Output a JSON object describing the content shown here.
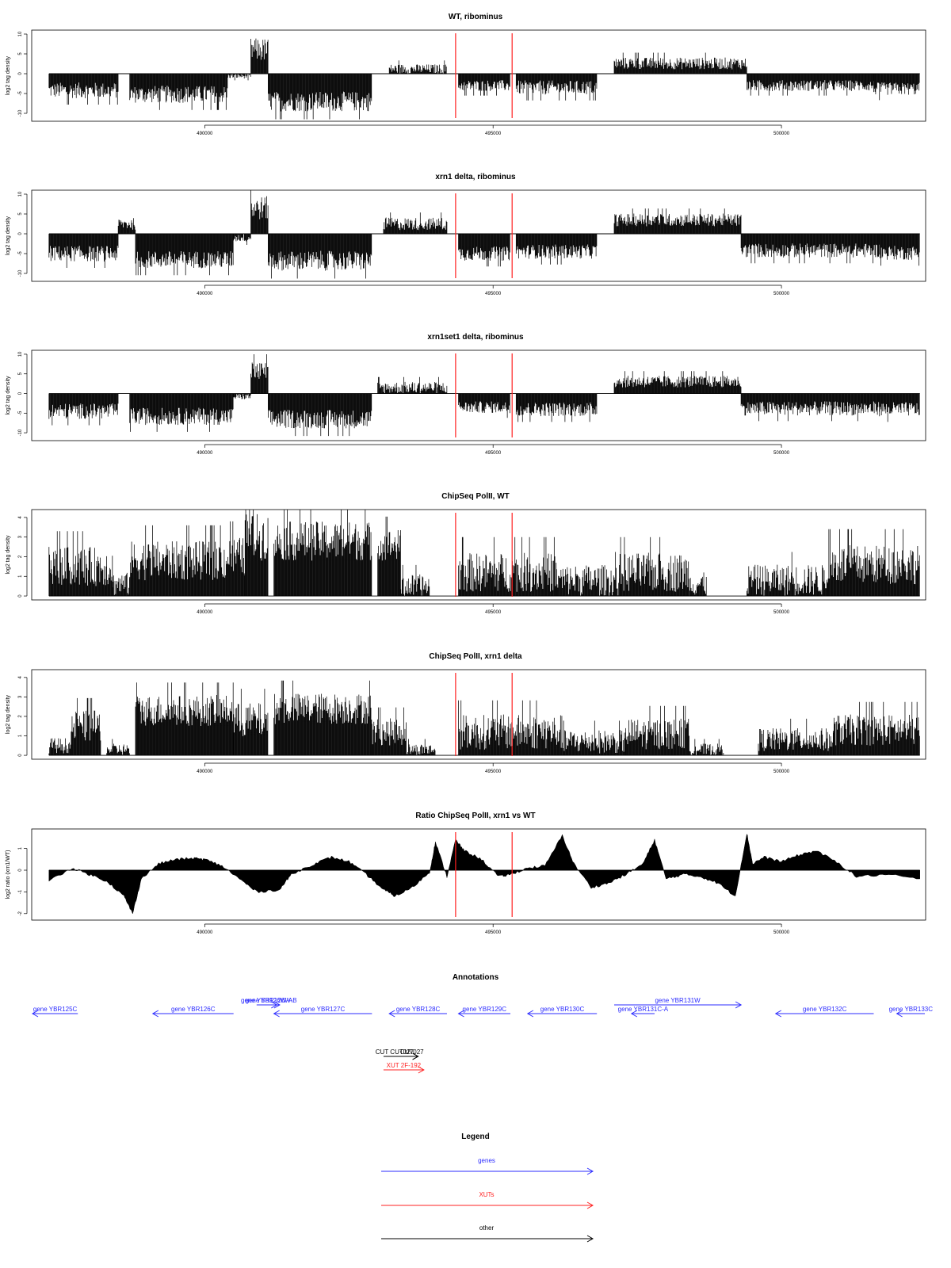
{
  "colors": {
    "genes": "#2b2bff",
    "xuts": "#ff2020",
    "other": "#000000",
    "marker": "#ff2020",
    "data": "#000000"
  },
  "x_range": [
    487000,
    502500
  ],
  "markers": [
    494350,
    495330
  ],
  "chart_data": [
    {
      "id": "wt_ribominus",
      "type": "bar",
      "title": "WT, ribominus",
      "ylabel": "log2 tag density",
      "ylim": [
        -12,
        11
      ],
      "y_ticks": [
        -10,
        -5,
        0,
        5,
        10
      ],
      "x_ticks": [
        490000,
        495000,
        500000
      ],
      "baseline": 0,
      "segments": [
        {
          "start": 487300,
          "end": 488500,
          "level": -4.2,
          "var": 2.0
        },
        {
          "start": 488700,
          "end": 490400,
          "level": -5.2,
          "var": 2.2
        },
        {
          "start": 490400,
          "end": 490800,
          "level": -0.6,
          "var": 0.6
        },
        {
          "start": 490800,
          "end": 491100,
          "level": 6.0,
          "var": 3.0
        },
        {
          "start": 491100,
          "end": 492900,
          "level": -7.0,
          "var": 2.5
        },
        {
          "start": 493200,
          "end": 494200,
          "level": 1.2,
          "var": 1.2
        },
        {
          "start": 494400,
          "end": 495300,
          "level": -3.0,
          "var": 1.4
        },
        {
          "start": 495400,
          "end": 496800,
          "level": -3.5,
          "var": 1.8
        },
        {
          "start": 497100,
          "end": 499400,
          "level": 2.6,
          "var": 1.5
        },
        {
          "start": 499400,
          "end": 501600,
          "level": -3.0,
          "var": 1.4
        },
        {
          "start": 501600,
          "end": 502400,
          "level": -3.8,
          "var": 1.6
        }
      ]
    },
    {
      "id": "xrn1_ribominus",
      "type": "bar",
      "title": "xrn1 delta, ribominus",
      "ylabel": "log2 tag density",
      "ylim": [
        -12,
        11
      ],
      "y_ticks": [
        -10,
        -5,
        0,
        5,
        10
      ],
      "x_ticks": [
        490000,
        495000,
        500000
      ],
      "baseline": 0,
      "segments": [
        {
          "start": 487300,
          "end": 488500,
          "level": -5.0,
          "var": 2.0
        },
        {
          "start": 488500,
          "end": 488800,
          "level": 2.5,
          "var": 1.5
        },
        {
          "start": 488800,
          "end": 490500,
          "level": -6.5,
          "var": 2.2
        },
        {
          "start": 490500,
          "end": 490800,
          "level": -1.0,
          "var": 1.0
        },
        {
          "start": 490800,
          "end": 491100,
          "level": 6.5,
          "var": 3.0
        },
        {
          "start": 491100,
          "end": 492900,
          "level": -6.8,
          "var": 2.5
        },
        {
          "start": 493100,
          "end": 494200,
          "level": 2.5,
          "var": 1.6
        },
        {
          "start": 494400,
          "end": 495300,
          "level": -5.0,
          "var": 1.8
        },
        {
          "start": 495400,
          "end": 496800,
          "level": -4.5,
          "var": 1.8
        },
        {
          "start": 497100,
          "end": 499300,
          "level": 3.5,
          "var": 1.6
        },
        {
          "start": 499300,
          "end": 501700,
          "level": -4.2,
          "var": 1.8
        },
        {
          "start": 501700,
          "end": 502400,
          "level": -4.8,
          "var": 1.8
        }
      ]
    },
    {
      "id": "xrn1set1_ribominus",
      "type": "bar",
      "title": "xrn1set1 delta, ribominus",
      "ylabel": "log2 tag density",
      "ylim": [
        -12,
        11
      ],
      "y_ticks": [
        -10,
        -5,
        0,
        5,
        10
      ],
      "x_ticks": [
        490000,
        495000,
        500000
      ],
      "baseline": 0,
      "segments": [
        {
          "start": 487300,
          "end": 488500,
          "level": -4.5,
          "var": 2.0
        },
        {
          "start": 488700,
          "end": 490500,
          "level": -5.8,
          "var": 2.2
        },
        {
          "start": 490500,
          "end": 490800,
          "level": -0.8,
          "var": 0.8
        },
        {
          "start": 490800,
          "end": 491100,
          "level": 5.5,
          "var": 2.5
        },
        {
          "start": 491100,
          "end": 492900,
          "level": -6.5,
          "var": 2.4
        },
        {
          "start": 493000,
          "end": 494200,
          "level": 1.5,
          "var": 1.5
        },
        {
          "start": 494400,
          "end": 495300,
          "level": -3.5,
          "var": 1.5
        },
        {
          "start": 495400,
          "end": 496800,
          "level": -4.0,
          "var": 1.8
        },
        {
          "start": 497100,
          "end": 499300,
          "level": 3.0,
          "var": 1.5
        },
        {
          "start": 499300,
          "end": 501700,
          "level": -3.8,
          "var": 1.8
        },
        {
          "start": 501700,
          "end": 502400,
          "level": -4.0,
          "var": 1.8
        }
      ]
    },
    {
      "id": "chipseq_wt",
      "type": "bar",
      "title": "ChipSeq PolII, WT",
      "ylabel": "log2 tag density",
      "ylim": [
        -0.2,
        4.4
      ],
      "y_ticks": [
        0,
        1,
        2,
        3,
        4
      ],
      "x_ticks": [
        490000,
        495000,
        500000
      ],
      "baseline": 0,
      "segments": [
        {
          "start": 487300,
          "end": 488400,
          "level": 1.5,
          "var": 1.0
        },
        {
          "start": 488400,
          "end": 488700,
          "level": 0.6,
          "var": 0.6
        },
        {
          "start": 488700,
          "end": 490400,
          "level": 1.8,
          "var": 1.0
        },
        {
          "start": 490400,
          "end": 490700,
          "level": 2.0,
          "var": 1.0
        },
        {
          "start": 490700,
          "end": 491100,
          "level": 3.0,
          "var": 1.2
        },
        {
          "start": 491200,
          "end": 492900,
          "level": 2.8,
          "var": 1.0
        },
        {
          "start": 493000,
          "end": 493400,
          "level": 2.6,
          "var": 0.8
        },
        {
          "start": 493400,
          "end": 493900,
          "level": 0.5,
          "var": 0.6
        },
        {
          "start": 494400,
          "end": 496100,
          "level": 1.2,
          "var": 1.0
        },
        {
          "start": 496100,
          "end": 497200,
          "level": 0.8,
          "var": 0.8
        },
        {
          "start": 497200,
          "end": 498400,
          "level": 1.2,
          "var": 1.0
        },
        {
          "start": 498400,
          "end": 498700,
          "level": 0.6,
          "var": 0.6
        },
        {
          "start": 499400,
          "end": 500800,
          "level": 0.8,
          "var": 0.8
        },
        {
          "start": 500800,
          "end": 502400,
          "level": 1.6,
          "var": 1.0
        }
      ]
    },
    {
      "id": "chipseq_xrn1",
      "type": "bar",
      "title": "ChipSeq PolII, xrn1 delta",
      "ylabel": "log2 tag density",
      "ylim": [
        -0.2,
        4.4
      ],
      "y_ticks": [
        0,
        1,
        2,
        3,
        4
      ],
      "x_ticks": [
        490000,
        495000,
        500000
      ],
      "baseline": 0,
      "segments": [
        {
          "start": 487300,
          "end": 487700,
          "level": 0.5,
          "var": 0.4
        },
        {
          "start": 487700,
          "end": 488200,
          "level": 1.5,
          "var": 0.8
        },
        {
          "start": 488300,
          "end": 488700,
          "level": 0.3,
          "var": 0.3
        },
        {
          "start": 488800,
          "end": 490500,
          "level": 2.3,
          "var": 0.8
        },
        {
          "start": 490500,
          "end": 491100,
          "level": 1.8,
          "var": 0.9
        },
        {
          "start": 491200,
          "end": 492900,
          "level": 2.4,
          "var": 0.8
        },
        {
          "start": 492900,
          "end": 493500,
          "level": 1.2,
          "var": 0.7
        },
        {
          "start": 493500,
          "end": 494000,
          "level": 0.3,
          "var": 0.3
        },
        {
          "start": 494400,
          "end": 496200,
          "level": 1.2,
          "var": 0.9
        },
        {
          "start": 496200,
          "end": 497300,
          "level": 0.7,
          "var": 0.6
        },
        {
          "start": 497300,
          "end": 498400,
          "level": 1.1,
          "var": 0.8
        },
        {
          "start": 498400,
          "end": 499000,
          "level": 0.3,
          "var": 0.3
        },
        {
          "start": 499600,
          "end": 500900,
          "level": 0.8,
          "var": 0.6
        },
        {
          "start": 500900,
          "end": 502400,
          "level": 1.3,
          "var": 0.8
        }
      ]
    },
    {
      "id": "ratio_xrn1_vs_wt",
      "type": "area",
      "title": "Ratio ChipSeq PolII, xrn1 vs WT",
      "ylabel": "log2 ratio (xrn1/WT)",
      "ylim": [
        -2.3,
        1.9
      ],
      "y_ticks": [
        -2,
        -1,
        0,
        1
      ],
      "x_ticks": [
        490000,
        495000,
        500000
      ],
      "baseline": 0,
      "x": [
        487300,
        487700,
        488000,
        488300,
        488600,
        488750,
        488900,
        489200,
        489500,
        489800,
        490000,
        490300,
        490600,
        490900,
        491300,
        491500,
        491900,
        492200,
        492500,
        492800,
        493100,
        493300,
        493600,
        493900,
        494000,
        494200,
        494350,
        494500,
        494800,
        495100,
        495300,
        495600,
        495900,
        496200,
        496400,
        496700,
        497000,
        497300,
        497600,
        497800,
        498000,
        498300,
        498600,
        498900,
        499200,
        499400,
        499500,
        499700,
        500000,
        500300,
        500600,
        501000,
        501300,
        501800,
        502400
      ],
      "values": [
        -0.5,
        0.1,
        -0.2,
        -0.5,
        -1.2,
        -2.0,
        -0.4,
        0.3,
        0.5,
        0.55,
        0.5,
        0.2,
        -0.4,
        -1.0,
        -0.9,
        -0.2,
        0.3,
        0.6,
        0.4,
        -0.2,
        -0.9,
        -1.2,
        -0.8,
        -0.1,
        1.3,
        -0.3,
        1.4,
        0.9,
        0.5,
        -0.3,
        -0.2,
        0.1,
        0.2,
        1.6,
        0.3,
        -0.8,
        -0.6,
        -0.2,
        0.3,
        1.4,
        -0.4,
        -0.2,
        -0.3,
        -0.6,
        -1.2,
        1.7,
        0.3,
        0.6,
        0.4,
        0.7,
        0.9,
        0.3,
        -0.3,
        -0.2,
        -0.4
      ]
    }
  ],
  "annotations": {
    "title": "Annotations",
    "genes": [
      {
        "label": "gene YBR125C",
        "start": 487800,
        "end": 486700,
        "row": 0
      },
      {
        "label": "gene YBR126C",
        "start": 490500,
        "end": 489100,
        "row": 0
      },
      {
        "label": "gene YBR126W-A",
        "start": 490900,
        "end": 491250,
        "row": 1
      },
      {
        "label": "gene YBR126W-B",
        "start": 491000,
        "end": 491300,
        "row": 1
      },
      {
        "label": "gene YBR127C",
        "start": 492900,
        "end": 491200,
        "row": 0
      },
      {
        "label": "gene YBR128C",
        "start": 494200,
        "end": 493200,
        "row": 0
      },
      {
        "label": "gene YBR129C",
        "start": 495300,
        "end": 494400,
        "row": 0
      },
      {
        "label": "gene YBR130C",
        "start": 496800,
        "end": 495600,
        "row": 0
      },
      {
        "label": "gene YBR131W",
        "start": 497100,
        "end": 499300,
        "row": 1
      },
      {
        "label": "gene YBR131C-A",
        "start": 497800,
        "end": 497400,
        "row": 0
      },
      {
        "label": "gene YBR132C",
        "start": 501600,
        "end": 499900,
        "row": 0
      },
      {
        "label": "gene YBR133C",
        "start": 504000,
        "end": 502000,
        "row": 0
      }
    ],
    "other": [
      {
        "label": "CUT CUT027",
        "start": 493100,
        "end": 493700
      },
      {
        "label": "CUT027",
        "start": 493400,
        "end": 493700
      }
    ],
    "xuts": [
      {
        "label": "XUT 2F-192",
        "start": 493100,
        "end": 493800
      }
    ]
  },
  "legend": {
    "title": "Legend",
    "items": [
      {
        "label": "genes",
        "color": "#2b2bff"
      },
      {
        "label": "XUTs",
        "color": "#ff2020"
      },
      {
        "label": "other",
        "color": "#000000"
      }
    ]
  }
}
